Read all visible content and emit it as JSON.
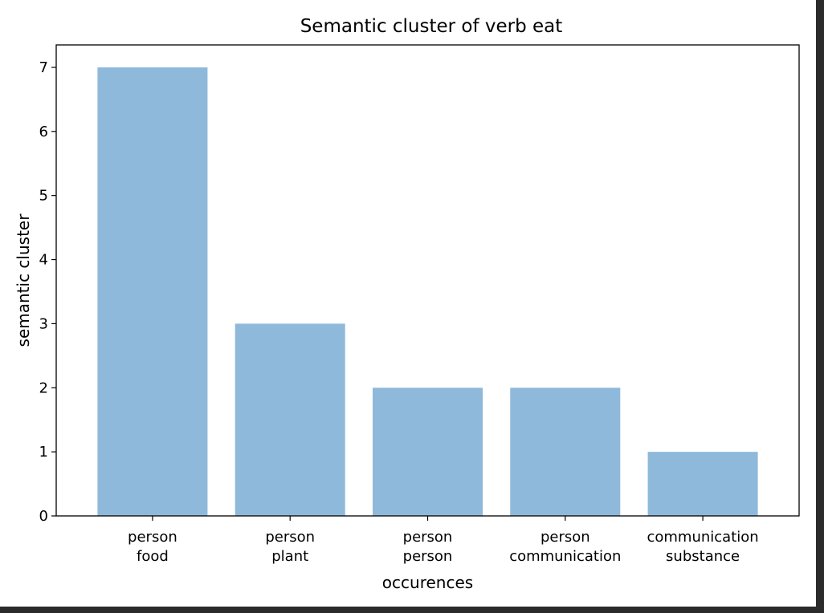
{
  "chart_data": {
    "type": "bar",
    "title": "Semantic cluster of verb eat",
    "xlabel": "occurences",
    "ylabel": "semantic cluster",
    "categories": [
      [
        "person",
        "food"
      ],
      [
        "person",
        "plant"
      ],
      [
        "person",
        "person"
      ],
      [
        "person",
        "communication"
      ],
      [
        "communication",
        "substance"
      ]
    ],
    "values": [
      7,
      3,
      2,
      2,
      1
    ],
    "ylim": [
      0,
      7.35
    ],
    "yticks": [
      "0",
      "1",
      "2",
      "3",
      "4",
      "5",
      "6",
      "7"
    ],
    "grid": false,
    "bar_color": "#8fb9da"
  }
}
